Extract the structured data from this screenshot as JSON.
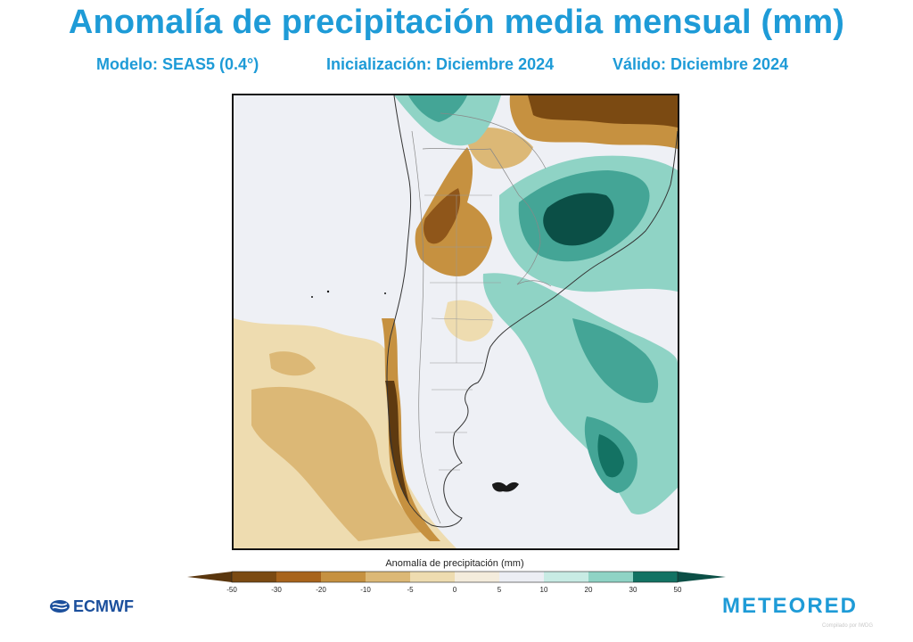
{
  "header": {
    "title": "Anomalía de precipitación media mensual (mm)",
    "model": "Modelo: SEAS5 (0.4°)",
    "init": "Inicialización: Diciembre 2024",
    "valid": "Válido: Diciembre 2024"
  },
  "legend": {
    "title": "Anomalía de precipitación (mm)",
    "ticks": [
      "-50",
      "-30",
      "-20",
      "-10",
      "-5",
      "0",
      "5",
      "10",
      "20",
      "30",
      "50"
    ],
    "colors": [
      "#7b4a12",
      "#a8641c",
      "#c69140",
      "#dcb876",
      "#eedcb0",
      "#f4ecdc",
      "#eceef4",
      "#c8ebe4",
      "#8fd3c5",
      "#44a596",
      "#137263",
      "#0b4f46"
    ]
  },
  "logos": {
    "left": "ECMWF",
    "right": "METEORED",
    "credit": "Compilado por IWDG"
  }
}
